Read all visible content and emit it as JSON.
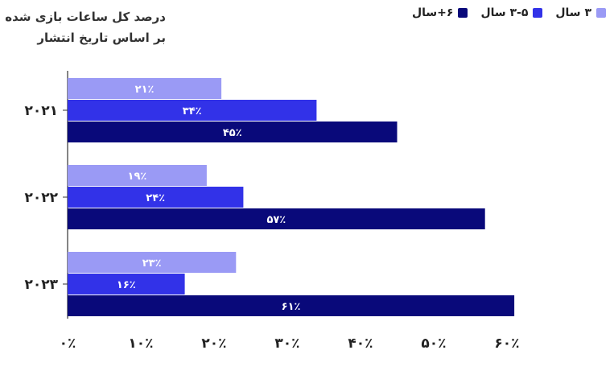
{
  "colors": {
    "series_1": "#9a9af5",
    "series_2": "#3232e8",
    "series_3": "#09097a",
    "axis": "#333333"
  },
  "chart_data": {
    "type": "bar",
    "orientation": "horizontal",
    "title": "درصد کل ساعات بازی شده",
    "subtitle": "بر اساس تاریخ انتشار",
    "categories": [
      "۲۰۲۱",
      "۲۰۲۲",
      "۲۰۲۳"
    ],
    "series": [
      {
        "name": "۳ سال",
        "values": [
          21,
          19,
          23
        ],
        "labels": [
          "۲۱٪",
          "۱۹٪",
          "۲۳٪"
        ]
      },
      {
        "name": "۳-۵ سال",
        "values": [
          34,
          24,
          16
        ],
        "labels": [
          "۳۴٪",
          "۲۴٪",
          "۱۶٪"
        ]
      },
      {
        "name": "۶+سال",
        "values": [
          45,
          57,
          61
        ],
        "labels": [
          "۴۵٪",
          "۵۷٪",
          "۶۱٪"
        ]
      }
    ],
    "xlim": [
      0,
      60
    ],
    "xticks": [
      0,
      10,
      20,
      30,
      40,
      50,
      60
    ],
    "xtick_labels": [
      "۰٪",
      "۱۰٪",
      "۲۰٪",
      "۳۰٪",
      "۴۰٪",
      "۵۰٪",
      "۶۰٪"
    ],
    "legend_position": "top-right",
    "grid": false
  }
}
